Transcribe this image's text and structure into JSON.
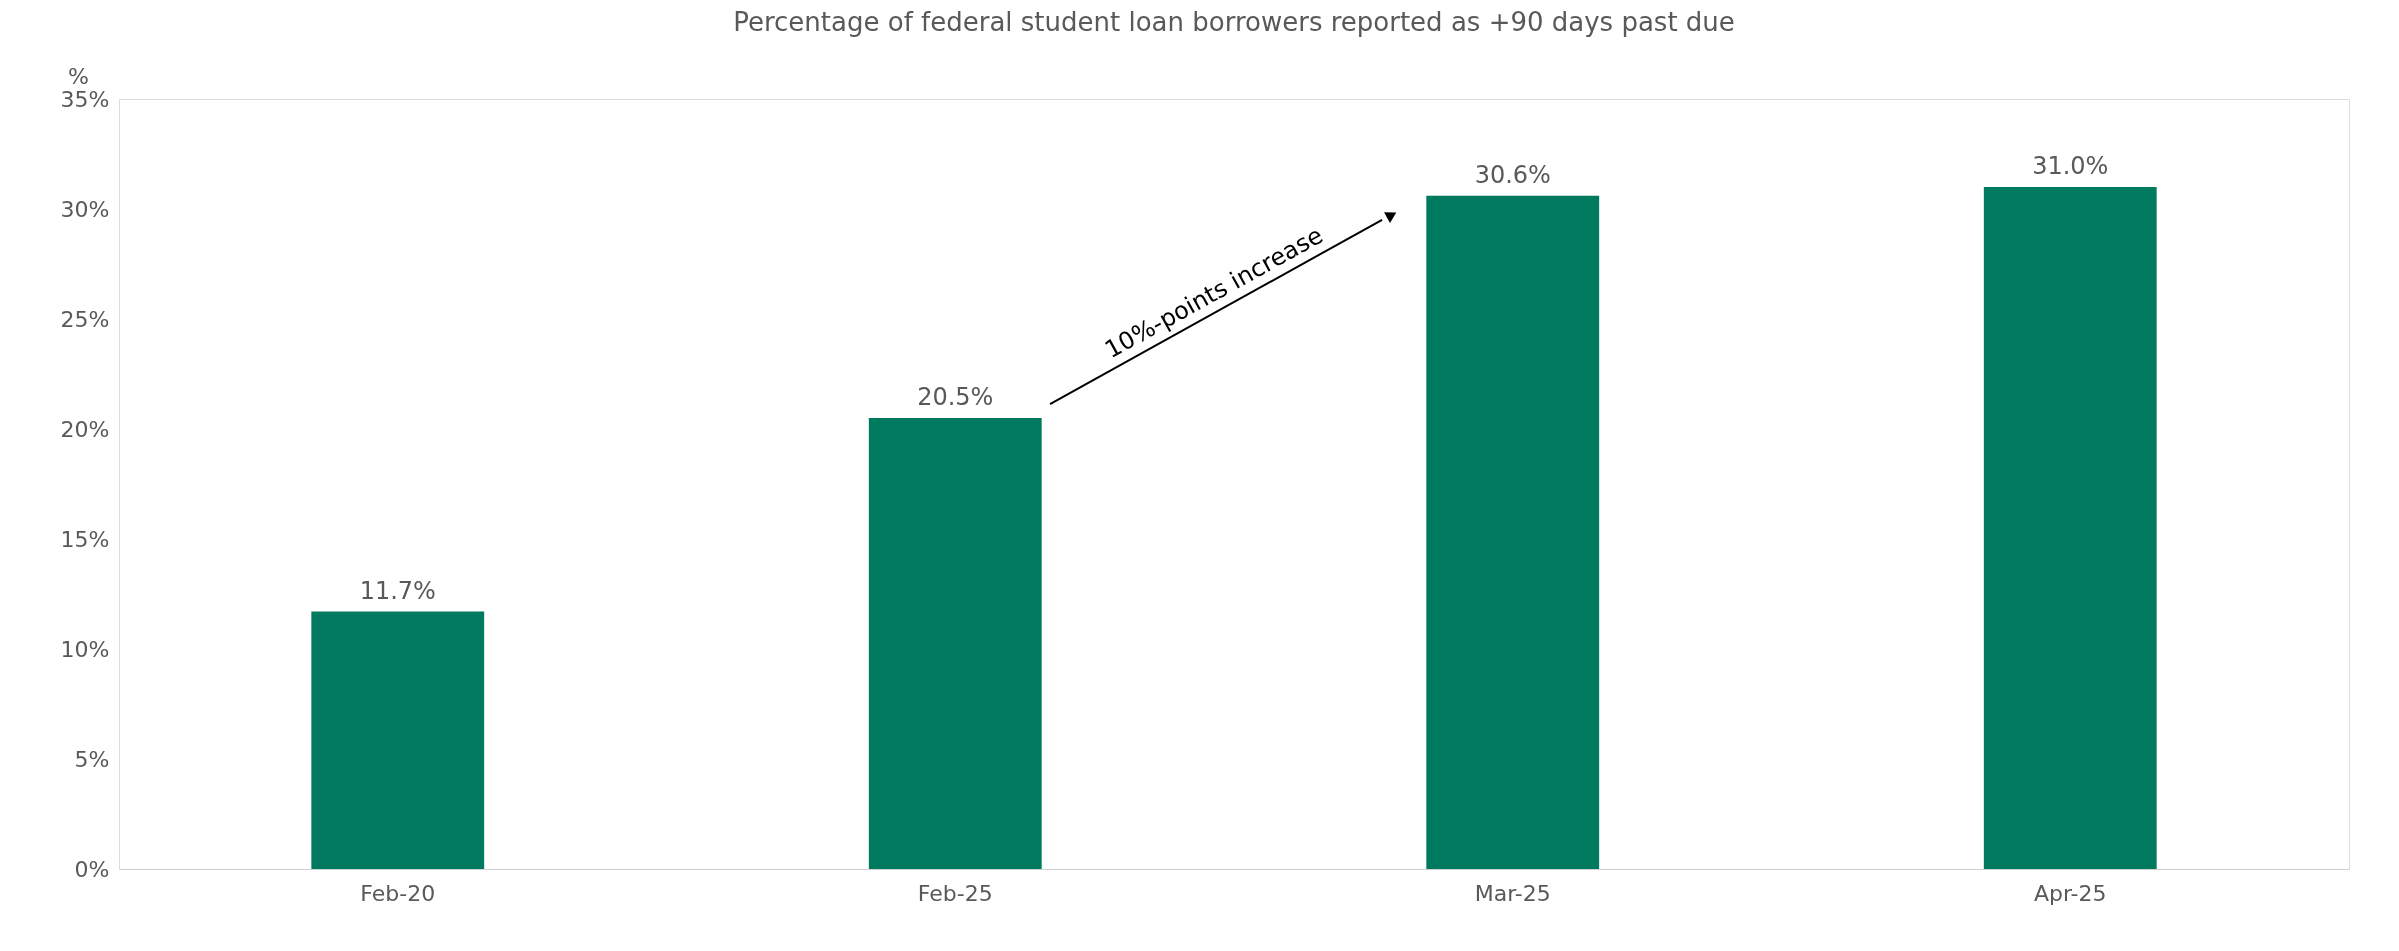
{
  "chart_data": {
    "type": "bar",
    "title": "Percentage of federal student loan borrowers reported as +90 days past due",
    "ylabel": "%",
    "categories": [
      "Feb-20",
      "Feb-25",
      "Mar-25",
      "Apr-25"
    ],
    "values": [
      11.7,
      20.5,
      30.6,
      31.0
    ],
    "color": "#007a5e",
    "value_labels": [
      "11.7%",
      "20.5%",
      "30.6%",
      "31.0%"
    ],
    "ylim": [
      0,
      35
    ],
    "yticks": [
      {
        "value": 0,
        "label": "0%"
      },
      {
        "value": 5,
        "label": "5%"
      },
      {
        "value": 10,
        "label": "10%"
      },
      {
        "value": 15,
        "label": "15%"
      },
      {
        "value": 20,
        "label": "20%"
      },
      {
        "value": 25,
        "label": "25%"
      },
      {
        "value": 30,
        "label": "30%"
      },
      {
        "value": 35,
        "label": "35%"
      }
    ],
    "annotations": [
      "10%-points increase"
    ],
    "grid": false
  }
}
